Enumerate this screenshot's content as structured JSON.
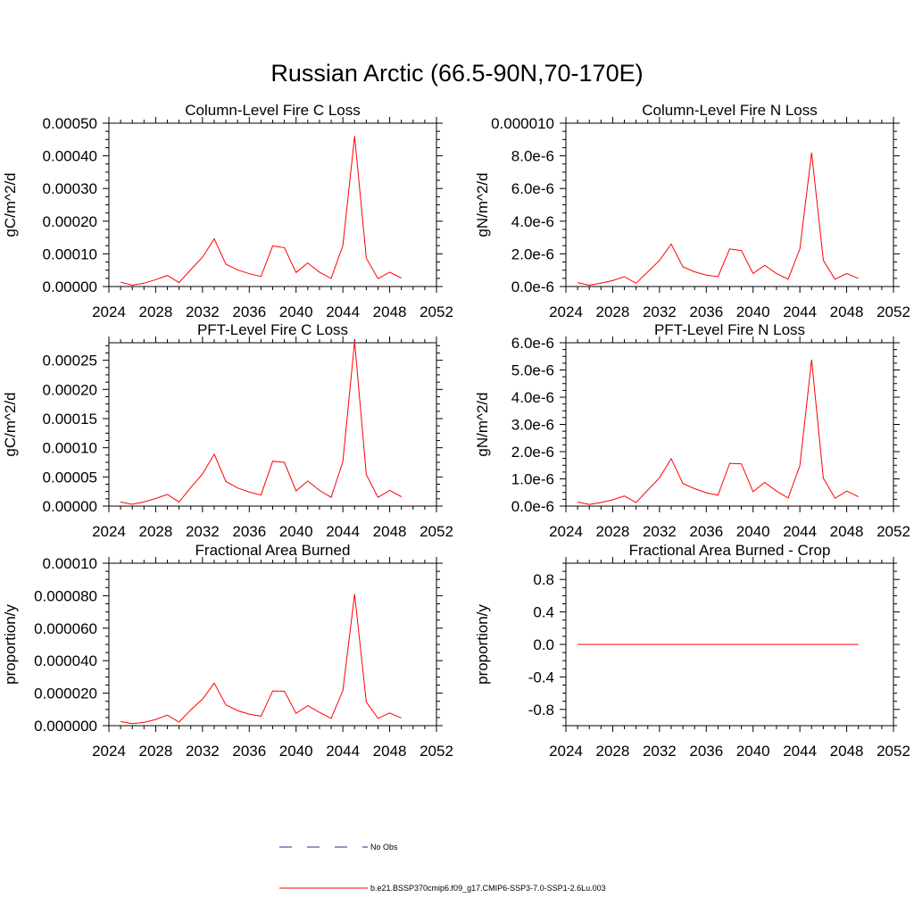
{
  "title": "Russian Arctic (66.5-90N,70-170E)",
  "chart_data": [
    {
      "type": "line",
      "title": "Column-Level Fire C Loss",
      "ylabel": "gC/m^2/d",
      "xlim": [
        2024,
        2052
      ],
      "ylim": [
        0,
        0.0005
      ],
      "xticks": [
        2024,
        2028,
        2032,
        2036,
        2040,
        2044,
        2048,
        2052
      ],
      "xtick_labels": [
        "2024",
        "2028",
        "2032",
        "2036",
        "2040",
        "2044",
        "2048",
        "2052"
      ],
      "yticks": [
        0,
        0.0001,
        0.0002,
        0.0003,
        0.0004,
        0.0005
      ],
      "ytick_labels": [
        "0.00000",
        "0.00010",
        "0.00020",
        "0.00030",
        "0.00040",
        "0.00050"
      ],
      "x": [
        2025,
        2026,
        2027,
        2028,
        2029,
        2030,
        2031,
        2032,
        2033,
        2034,
        2035,
        2036,
        2037,
        2038,
        2039,
        2040,
        2041,
        2042,
        2043,
        2044,
        2045,
        2046,
        2047,
        2048,
        2049
      ],
      "series": [
        {
          "name": "b.e21.BSSP370cmip6.f09_g17.CMIP6-SSP3-7.0-SSP1-2.6Lu.003",
          "color": "#ff0000",
          "values": [
            1.3e-05,
            4e-06,
            1e-05,
            2.1e-05,
            3.4e-05,
            1.2e-05,
            5.2e-05,
            9e-05,
            0.000146,
            6.8e-05,
            5.1e-05,
            3.9e-05,
            3.1e-05,
            0.000124,
            0.000119,
            4.3e-05,
            7.2e-05,
            4.4e-05,
            2.5e-05,
            0.000125,
            0.00046,
            8.7e-05,
            2.4e-05,
            4.4e-05,
            2.6e-05
          ]
        }
      ]
    },
    {
      "type": "line",
      "title": "Column-Level Fire N Loss",
      "ylabel": "gN/m^2/d",
      "xlim": [
        2024,
        2052
      ],
      "ylim": [
        0,
        1e-05
      ],
      "xticks": [
        2024,
        2028,
        2032,
        2036,
        2040,
        2044,
        2048,
        2052
      ],
      "xtick_labels": [
        "2024",
        "2028",
        "2032",
        "2036",
        "2040",
        "2044",
        "2048",
        "2052"
      ],
      "yticks": [
        0,
        2e-06,
        4e-06,
        6e-06,
        8e-06,
        1e-05
      ],
      "ytick_labels": [
        "0.0e-6",
        "2.0e-6",
        "4.0e-6",
        "6.0e-6",
        "8.0e-6",
        "0.000010"
      ],
      "x": [
        2025,
        2026,
        2027,
        2028,
        2029,
        2030,
        2031,
        2032,
        2033,
        2034,
        2035,
        2036,
        2037,
        2038,
        2039,
        2040,
        2041,
        2042,
        2043,
        2044,
        2045,
        2046,
        2047,
        2048,
        2049
      ],
      "series": [
        {
          "name": "b.e21.BSSP370cmip6.f09_g17.CMIP6-SSP3-7.0-SSP1-2.6Lu.003",
          "color": "#ff0000",
          "values": [
            2.4e-07,
            8e-08,
            2e-07,
            3.6e-07,
            6e-07,
            2e-07,
            9e-07,
            1.6e-06,
            2.6e-06,
            1.2e-06,
            9e-07,
            7e-07,
            6e-07,
            2.3e-06,
            2.2e-06,
            8e-07,
            1.3e-06,
            8e-07,
            4.5e-07,
            2.3e-06,
            8.2e-06,
            1.6e-06,
            4.5e-07,
            8e-07,
            5e-07
          ]
        }
      ]
    },
    {
      "type": "line",
      "title": "PFT-Level Fire C Loss",
      "ylabel": "gC/m^2/d",
      "xlim": [
        2024,
        2052
      ],
      "ylim": [
        0,
        0.00028
      ],
      "xticks": [
        2024,
        2028,
        2032,
        2036,
        2040,
        2044,
        2048,
        2052
      ],
      "xtick_labels": [
        "2024",
        "2028",
        "2032",
        "2036",
        "2040",
        "2044",
        "2048",
        "2052"
      ],
      "yticks": [
        0,
        5e-05,
        0.0001,
        0.00015,
        0.0002,
        0.00025
      ],
      "ytick_labels": [
        "0.00000",
        "0.00005",
        "0.00010",
        "0.00015",
        "0.00020",
        "0.00025"
      ],
      "x": [
        2025,
        2026,
        2027,
        2028,
        2029,
        2030,
        2031,
        2032,
        2033,
        2034,
        2035,
        2036,
        2037,
        2038,
        2039,
        2040,
        2041,
        2042,
        2043,
        2044,
        2045,
        2046,
        2047,
        2048,
        2049
      ],
      "series": [
        {
          "name": "b.e21.BSSP370cmip6.f09_g17.CMIP6-SSP3-7.0-SSP1-2.6Lu.003",
          "color": "#ff0000",
          "values": [
            7e-06,
            3e-06,
            7e-06,
            1.3e-05,
            2e-05,
            7e-06,
            3.2e-05,
            5.5e-05,
            8.9e-05,
            4.2e-05,
            3.1e-05,
            2.4e-05,
            1.9e-05,
            7.7e-05,
            7.5e-05,
            2.6e-05,
            4.3e-05,
            2.7e-05,
            1.5e-05,
            7.6e-05,
            0.000282,
            5.4e-05,
            1.5e-05,
            2.7e-05,
            1.6e-05
          ]
        }
      ]
    },
    {
      "type": "line",
      "title": "PFT-Level Fire N Loss",
      "ylabel": "gN/m^2/d",
      "xlim": [
        2024,
        2052
      ],
      "ylim": [
        0,
        6e-06
      ],
      "xticks": [
        2024,
        2028,
        2032,
        2036,
        2040,
        2044,
        2048,
        2052
      ],
      "xtick_labels": [
        "2024",
        "2028",
        "2032",
        "2036",
        "2040",
        "2044",
        "2048",
        "2052"
      ],
      "yticks": [
        0,
        1e-06,
        2e-06,
        3e-06,
        4e-06,
        5e-06,
        6e-06
      ],
      "ytick_labels": [
        "0.0e-6",
        "1.0e-6",
        "2.0e-6",
        "3.0e-6",
        "4.0e-6",
        "5.0e-6",
        "6.0e-6"
      ],
      "x": [
        2025,
        2026,
        2027,
        2028,
        2029,
        2030,
        2031,
        2032,
        2033,
        2034,
        2035,
        2036,
        2037,
        2038,
        2039,
        2040,
        2041,
        2042,
        2043,
        2044,
        2045,
        2046,
        2047,
        2048,
        2049
      ],
      "series": [
        {
          "name": "b.e21.BSSP370cmip6.f09_g17.CMIP6-SSP3-7.0-SSP1-2.6Lu.003",
          "color": "#ff0000",
          "values": [
            1.5e-07,
            6e-08,
            1.3e-07,
            2.3e-07,
            3.7e-07,
            1.3e-07,
            5.9e-07,
            1.04e-06,
            1.74e-06,
            8.3e-07,
            6.4e-07,
            4.9e-07,
            4e-07,
            1.57e-06,
            1.55e-06,
            5.3e-07,
            8.7e-07,
            5.5e-07,
            3e-07,
            1.48e-06,
            5.38e-06,
            1.03e-06,
            2.9e-07,
            5.5e-07,
            3.4e-07
          ]
        }
      ]
    },
    {
      "type": "line",
      "title": "Fractional Area Burned",
      "ylabel": "proportion/y",
      "xlim": [
        2024,
        2052
      ],
      "ylim": [
        0,
        0.0001
      ],
      "xticks": [
        2024,
        2028,
        2032,
        2036,
        2040,
        2044,
        2048,
        2052
      ],
      "xtick_labels": [
        "2024",
        "2028",
        "2032",
        "2036",
        "2040",
        "2044",
        "2048",
        "2052"
      ],
      "yticks": [
        0,
        2e-05,
        4e-05,
        6e-05,
        8e-05,
        0.0001
      ],
      "ytick_labels": [
        "0.000000",
        "0.000020",
        "0.000040",
        "0.000060",
        "0.000080",
        "0.00010"
      ],
      "x": [
        2025,
        2026,
        2027,
        2028,
        2029,
        2030,
        2031,
        2032,
        2033,
        2034,
        2035,
        2036,
        2037,
        2038,
        2039,
        2040,
        2041,
        2042,
        2043,
        2044,
        2045,
        2046,
        2047,
        2048,
        2049
      ],
      "series": [
        {
          "name": "b.e21.BSSP370cmip6.f09_g17.CMIP6-SSP3-7.0-SSP1-2.6Lu.003",
          "color": "#ff0000",
          "values": [
            2.5e-06,
            1.2e-06,
            2e-06,
            3.8e-06,
            6.5e-06,
            2.2e-06,
            9.8e-06,
            1.63e-05,
            2.62e-05,
            1.28e-05,
            9.3e-06,
            7.1e-06,
            5.8e-06,
            2.14e-05,
            2.12e-05,
            7.6e-06,
            1.23e-05,
            8.2e-06,
            4.5e-06,
            2.15e-05,
            8.1e-05,
            1.45e-05,
            4.5e-06,
            7.8e-06,
            4.7e-06
          ]
        }
      ]
    },
    {
      "type": "line",
      "title": "Fractional Area Burned - Crop",
      "ylabel": "proportion/y",
      "xlim": [
        2024,
        2052
      ],
      "ylim": [
        -1,
        1
      ],
      "xticks": [
        2024,
        2028,
        2032,
        2036,
        2040,
        2044,
        2048,
        2052
      ],
      "xtick_labels": [
        "2024",
        "2028",
        "2032",
        "2036",
        "2040",
        "2044",
        "2048",
        "2052"
      ],
      "yticks": [
        -0.8,
        -0.4,
        0,
        0.4,
        0.8
      ],
      "ytick_labels": [
        "-0.8",
        "-0.4",
        "0.0",
        "0.4",
        "0.8"
      ],
      "x": [
        2025,
        2026,
        2027,
        2028,
        2029,
        2030,
        2031,
        2032,
        2033,
        2034,
        2035,
        2036,
        2037,
        2038,
        2039,
        2040,
        2041,
        2042,
        2043,
        2044,
        2045,
        2046,
        2047,
        2048,
        2049
      ],
      "series": [
        {
          "name": "b.e21.BSSP370cmip6.f09_g17.CMIP6-SSP3-7.0-SSP1-2.6Lu.003",
          "color": "#ff0000",
          "values": [
            0,
            0,
            0,
            0,
            0,
            0,
            0,
            0,
            0,
            0,
            0,
            0,
            0,
            0,
            0,
            0,
            0,
            0,
            0,
            0,
            0,
            0,
            0,
            0,
            0
          ]
        }
      ]
    }
  ],
  "legend": {
    "placement": "bottom-center",
    "items": [
      {
        "label": "No Obs",
        "color": "#2a2a9a",
        "style": "dashed"
      },
      {
        "label": "b.e21.BSSP370cmip6.f09_g17.CMIP6-SSP3-7.0-SSP1-2.6Lu.003",
        "color": "#ff0000",
        "style": "solid"
      }
    ]
  }
}
